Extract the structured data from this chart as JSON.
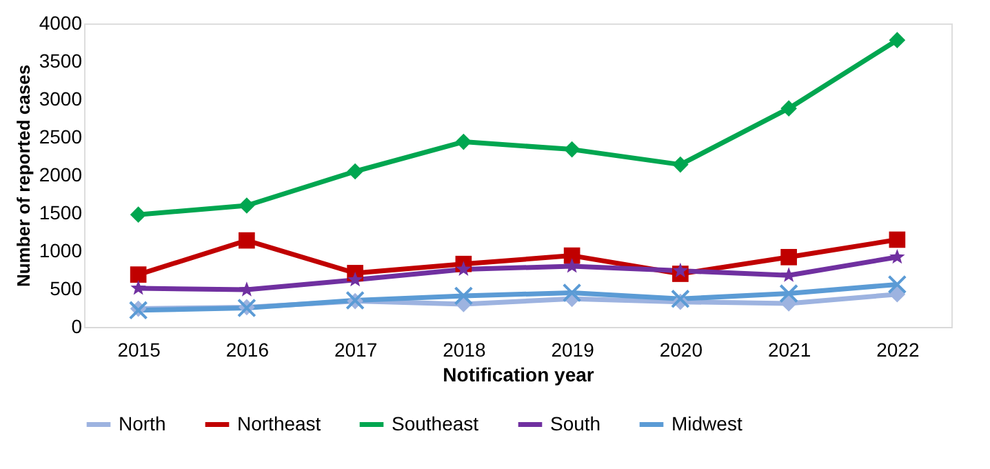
{
  "chart_data": {
    "type": "line",
    "xlabel": "Notification year",
    "ylabel": "Number of reported cases",
    "categories": [
      "2015",
      "2016",
      "2017",
      "2018",
      "2019",
      "2020",
      "2021",
      "2022"
    ],
    "series": [
      {
        "name": "North",
        "color": "#9db3e0",
        "marker": "diamond",
        "values": [
          240,
          260,
          340,
          300,
          370,
          330,
          310,
          430
        ]
      },
      {
        "name": "Northeast",
        "color": "#c00000",
        "marker": "square",
        "values": [
          690,
          1140,
          710,
          830,
          940,
          700,
          920,
          1150
        ]
      },
      {
        "name": "Southeast",
        "color": "#00a650",
        "marker": "diamond",
        "values": [
          1480,
          1600,
          2050,
          2440,
          2340,
          2140,
          2880,
          3780
        ]
      },
      {
        "name": "South",
        "color": "#7030a0",
        "marker": "star",
        "values": [
          510,
          490,
          620,
          760,
          800,
          740,
          680,
          920
        ]
      },
      {
        "name": "Midwest",
        "color": "#5b9bd5",
        "marker": "cross",
        "values": [
          220,
          250,
          350,
          410,
          450,
          370,
          440,
          560
        ]
      }
    ],
    "ylim": [
      0,
      4000
    ],
    "yticks": [
      0,
      500,
      1000,
      1500,
      2000,
      2500,
      3000,
      3500,
      4000
    ],
    "grid": false,
    "legend": "bottom",
    "line_style": "solid"
  }
}
